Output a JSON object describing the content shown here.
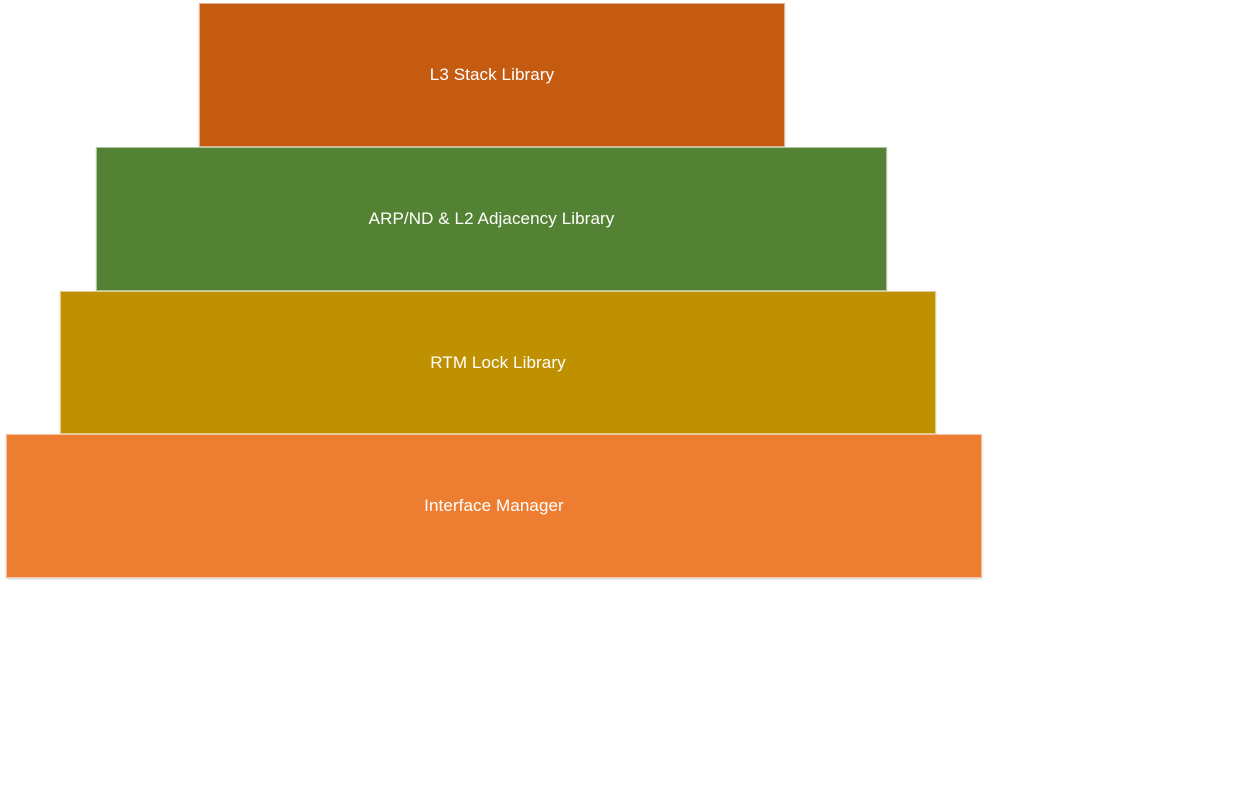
{
  "diagram": {
    "layers": [
      {
        "id": "l3",
        "label": "L3 Stack Library",
        "color": "#C55A11"
      },
      {
        "id": "arp",
        "label": "ARP/ND & L2 Adjacency Library",
        "color": "#548235"
      },
      {
        "id": "rtm",
        "label": "RTM Lock Library",
        "color": "#BF9000"
      },
      {
        "id": "if",
        "label": "Interface Manager",
        "color": "#ED7D31"
      }
    ]
  }
}
